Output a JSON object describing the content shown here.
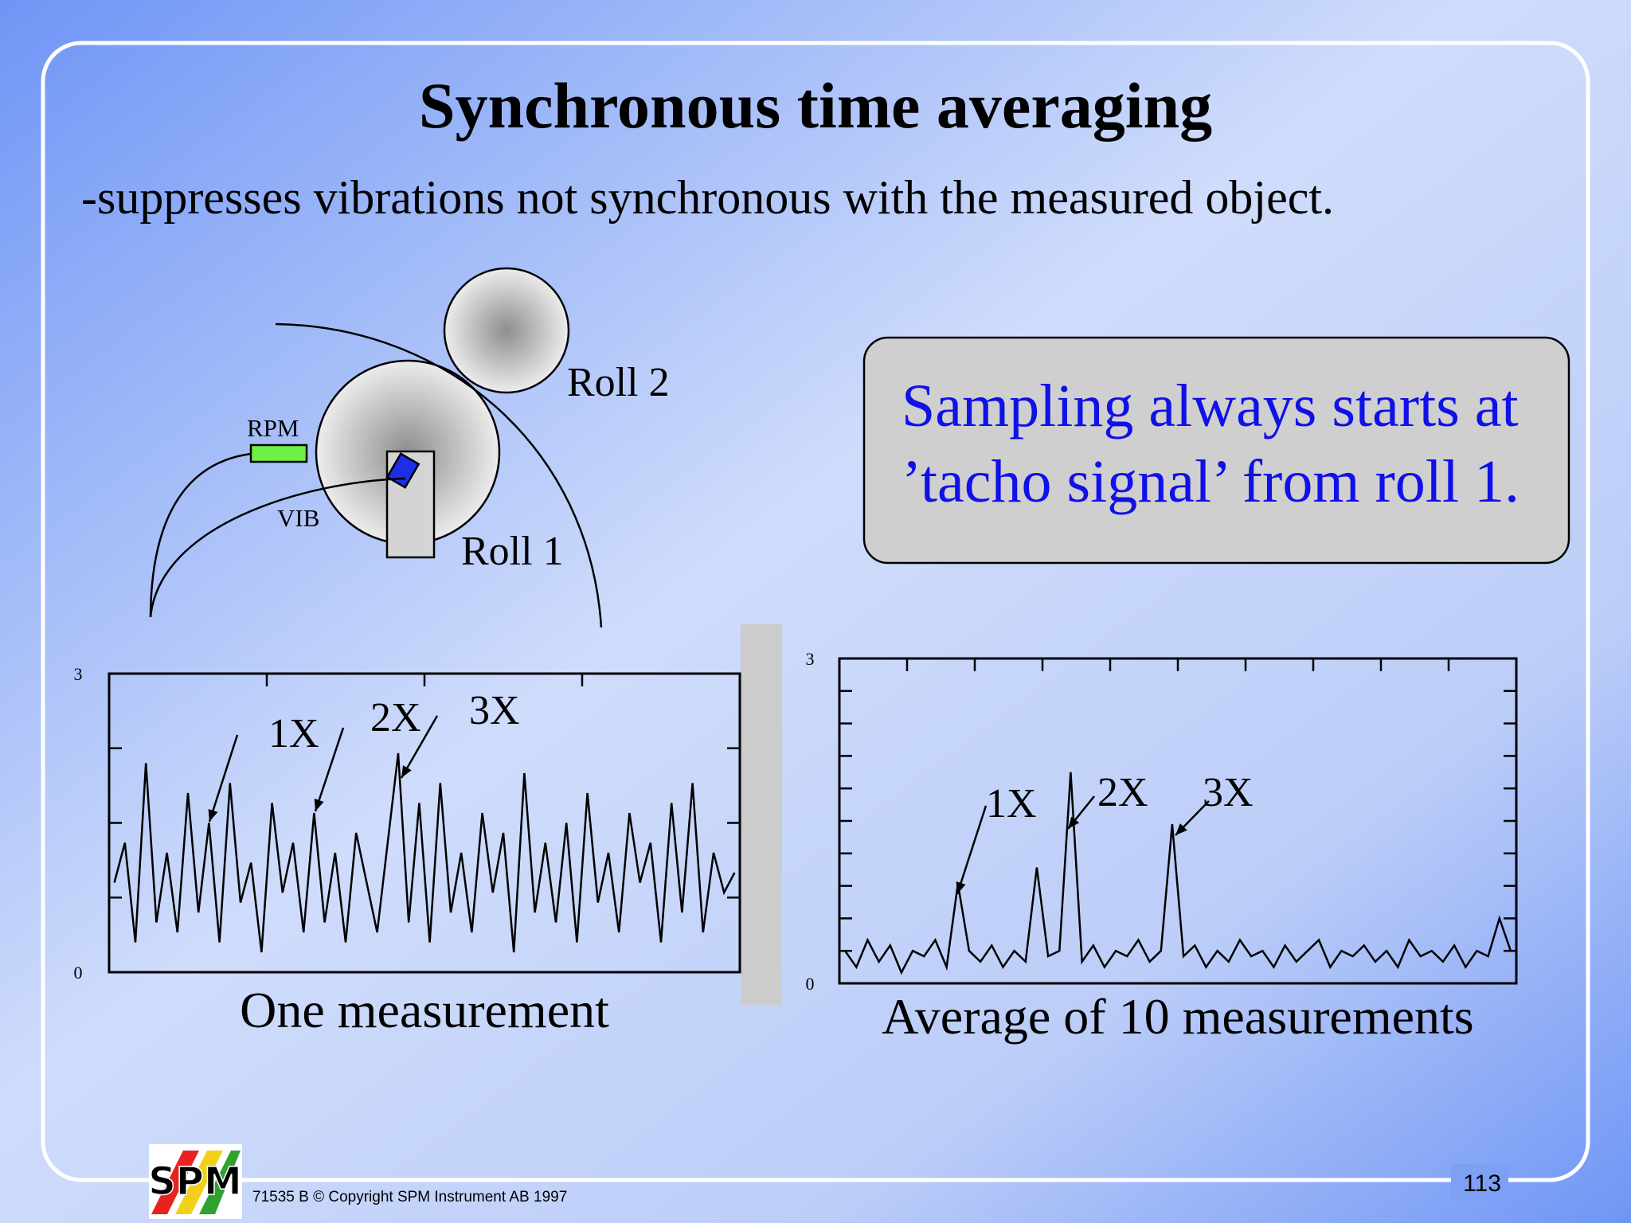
{
  "title": "Synchronous time averaging",
  "subtitle": "-suppresses vibrations not synchronous with the measured object.",
  "diagram": {
    "roll2": "Roll 2",
    "roll1": "Roll 1",
    "rpm": "RPM",
    "vib": "VIB"
  },
  "callout": {
    "lines": [
      "Sampling always starts at",
      "’tacho signal’ from roll 1."
    ]
  },
  "charts": [
    {
      "type": "line",
      "caption": "One measurement",
      "ylim": [
        0,
        3
      ],
      "yticks": [
        0,
        3
      ],
      "annotations": [
        "1X",
        "2X",
        "3X"
      ],
      "values": [
        0.9,
        1.3,
        0.3,
        2.1,
        0.5,
        1.2,
        0.4,
        1.8,
        0.6,
        1.5,
        0.3,
        1.9,
        0.7,
        1.1,
        0.2,
        1.7,
        0.8,
        1.3,
        0.4,
        1.6,
        0.5,
        1.2,
        0.3,
        1.4,
        0.9,
        0.4,
        1.3,
        2.2,
        0.5,
        1.7,
        0.3,
        1.9,
        0.6,
        1.2,
        0.4,
        1.6,
        0.8,
        1.4,
        0.2,
        2.0,
        0.6,
        1.3,
        0.5,
        1.5,
        0.3,
        1.8,
        0.7,
        1.2,
        0.4,
        1.6,
        0.9,
        1.3,
        0.3,
        1.7,
        0.6,
        1.9,
        0.4,
        1.2,
        0.8,
        1.0
      ]
    },
    {
      "type": "line",
      "caption": "Average of 10 measurements",
      "ylim": [
        0,
        3
      ],
      "yticks": [
        0,
        3
      ],
      "annotations": [
        "1X",
        "2X",
        "3X"
      ],
      "values": [
        0.3,
        0.15,
        0.4,
        0.2,
        0.35,
        0.1,
        0.3,
        0.25,
        0.4,
        0.15,
        0.92,
        0.3,
        0.2,
        0.35,
        0.15,
        0.3,
        0.2,
        1.07,
        0.25,
        0.3,
        1.95,
        0.2,
        0.35,
        0.15,
        0.3,
        0.25,
        0.4,
        0.2,
        0.3,
        1.47,
        0.25,
        0.35,
        0.15,
        0.3,
        0.2,
        0.4,
        0.25,
        0.3,
        0.15,
        0.35,
        0.2,
        0.3,
        0.4,
        0.15,
        0.3,
        0.25,
        0.35,
        0.2,
        0.3,
        0.15,
        0.4,
        0.25,
        0.3,
        0.2,
        0.35,
        0.15,
        0.3,
        0.25,
        0.6,
        0.3
      ]
    }
  ],
  "footer": {
    "logo": "SPM",
    "copyright": "71535 B  © Copyright SPM Instrument AB 1997",
    "page": "113"
  }
}
